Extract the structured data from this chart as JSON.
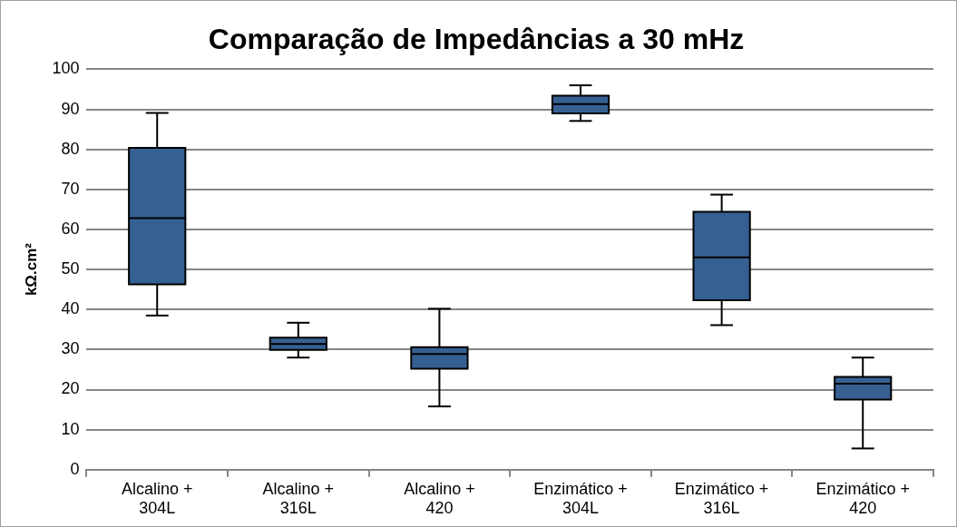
{
  "chart_data": {
    "type": "box",
    "title": "Comparação de Impedâncias a 30 mHz",
    "ylabel": "kΩ.cm²",
    "categories": [
      "Alcalino + 304L",
      "Alcalino + 316L",
      "Alcalino + 420",
      "Enzimático + 304L",
      "Enzimático + 316L",
      "Enzimático + 420"
    ],
    "color": "#376092",
    "boxes": [
      {
        "low": 38.5,
        "q1": 46.3,
        "median": 62.8,
        "q3": 80.4,
        "high": 89.1
      },
      {
        "low": 28.0,
        "q1": 29.9,
        "median": 31.4,
        "q3": 33.0,
        "high": 36.7
      },
      {
        "low": 15.8,
        "q1": 25.2,
        "median": 28.9,
        "q3": 30.6,
        "high": 40.2
      },
      {
        "low": 87.1,
        "q1": 89.0,
        "median": 91.3,
        "q3": 93.4,
        "high": 96.0
      },
      {
        "low": 36.1,
        "q1": 42.3,
        "median": 53.0,
        "q3": 64.4,
        "high": 68.7
      },
      {
        "low": 5.3,
        "q1": 17.5,
        "median": 21.5,
        "q3": 23.2,
        "high": 28.0
      }
    ],
    "ylim": [
      0,
      100
    ],
    "yticks": [
      0,
      10,
      20,
      30,
      40,
      50,
      60,
      70,
      80,
      90,
      100
    ],
    "grid": "y"
  }
}
